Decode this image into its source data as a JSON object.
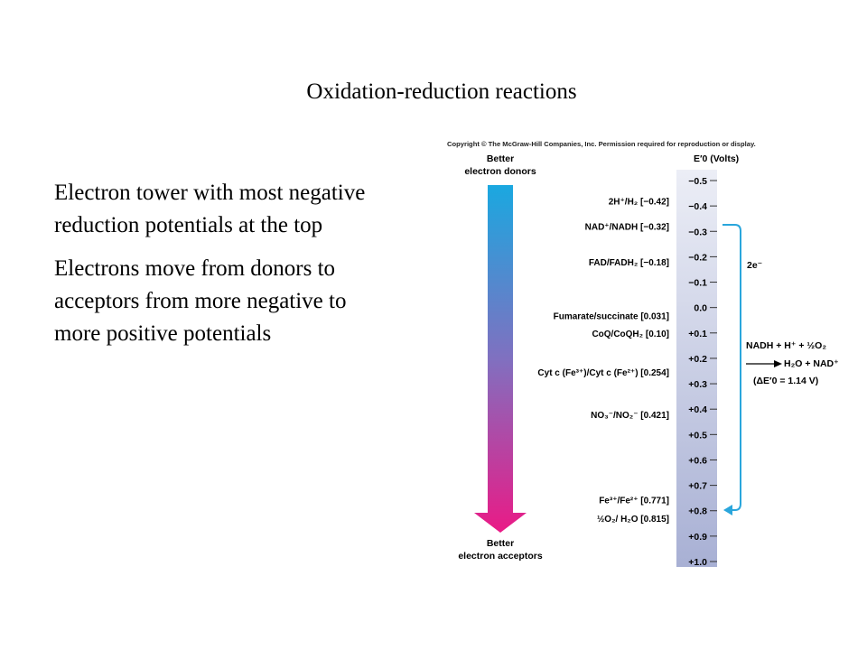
{
  "slide": {
    "title": "Oxidation-reduction reactions",
    "bullets": [
      "Electron tower with most negative reduction potentials at the top",
      "Electrons move from donors to acceptors from more negative to more positive potentials"
    ]
  },
  "figure": {
    "copyright": "Copyright © The McGraw-Hill Companies, Inc. Permission required for reproduction or display.",
    "top_label": [
      "Better",
      "electron donors"
    ],
    "bottom_label": [
      "Better",
      "electron acceptors"
    ],
    "axis_title": "E′0 (Volts)",
    "scale_ticks": [
      "−0.5",
      "−0.4",
      "−0.3",
      "−0.2",
      "−0.1",
      "0.0",
      "+0.1",
      "+0.2",
      "+0.3",
      "+0.4",
      "+0.5",
      "+0.6",
      "+0.7",
      "+0.8",
      "+0.9",
      "+1.0"
    ],
    "couples": [
      {
        "label": "2H⁺/H₂ [−0.42]",
        "e0": -0.42
      },
      {
        "label": "NAD⁺/NADH [−0.32]",
        "e0": -0.32
      },
      {
        "label": "FAD/FADH₂ [−0.18]",
        "e0": -0.18
      },
      {
        "label": "Fumarate/succinate [0.031]",
        "e0": 0.031
      },
      {
        "label": "CoQ/CoQH₂ [0.10]",
        "e0": 0.1
      },
      {
        "label": "Cyt c (Fe³⁺)/Cyt c (Fe²⁺) [0.254]",
        "e0": 0.254
      },
      {
        "label": "NO₃⁻/NO₂⁻ [0.421]",
        "e0": 0.421
      },
      {
        "label": "Fe³⁺/Fe²⁺ [0.771]",
        "e0": 0.771
      },
      {
        "label": "½O₂/ H₂O [0.815]",
        "e0": 0.815
      }
    ],
    "electron_label": "2e⁻",
    "reaction": {
      "left": "NADH + H⁺ + ½O₂",
      "right": "H₂O + NAD⁺",
      "delta": "(ΔE′0 = 1.14 V)"
    },
    "colors": {
      "arrow_top": "#1aa8e0",
      "arrow_mid": "#8070c0",
      "arrow_bottom": "#ea1a86",
      "tower_top": "#eceef6",
      "tower_bottom": "#a8b0d4",
      "electron_arrow": "#2aa6dc"
    }
  }
}
